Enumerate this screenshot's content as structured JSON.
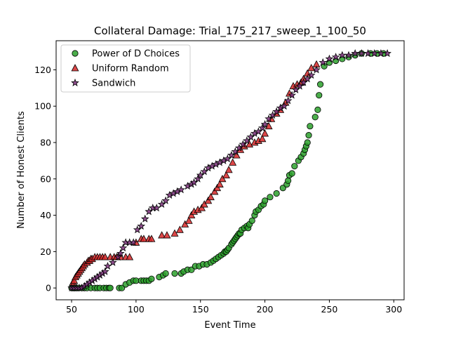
{
  "chart_data": {
    "type": "scatter",
    "title": "Collateral Damage: Trial_175_217_sweep_1_100_50",
    "xlabel": "Event Time",
    "ylabel": "Number of Honest Clients",
    "xlim": [
      38,
      308
    ],
    "ylim": [
      -6.5,
      136
    ],
    "xticks": [
      50,
      100,
      150,
      200,
      250,
      300
    ],
    "yticks": [
      0,
      20,
      40,
      60,
      80,
      100,
      120
    ],
    "grid": false,
    "legend_position": "upper-left",
    "series": [
      {
        "name": "Power of D Choices",
        "marker": "circle",
        "color": "#2ca02c",
        "x": [
          50,
          51,
          52,
          53,
          55,
          58,
          60,
          62,
          65,
          68,
          70,
          72,
          75,
          77,
          79,
          80,
          87,
          89,
          92,
          95,
          98,
          100,
          104,
          106,
          108,
          110,
          112,
          118,
          121,
          123,
          130,
          135,
          137,
          140,
          143,
          146,
          149,
          152,
          155,
          158,
          160,
          162,
          164,
          166,
          168,
          169,
          170,
          171,
          172,
          174,
          175,
          176,
          177,
          178,
          179,
          180,
          181,
          182,
          184,
          186,
          187,
          188,
          190,
          192,
          193,
          195,
          197,
          199,
          200,
          204,
          209,
          214,
          217,
          218,
          219,
          221,
          223,
          226,
          228,
          230,
          231,
          232,
          233,
          234,
          235,
          239,
          241,
          242,
          243,
          246,
          250,
          255,
          260,
          265,
          270,
          275,
          282,
          287,
          292
        ],
        "y": [
          0,
          0,
          0,
          0,
          0,
          0,
          0,
          0,
          0,
          0,
          0,
          0,
          0,
          0,
          0,
          0,
          0,
          0,
          2,
          3,
          4,
          4,
          4,
          4,
          4,
          4,
          5,
          6,
          7,
          8,
          8,
          8,
          9,
          10,
          10,
          12,
          12,
          13,
          13,
          14,
          15,
          16,
          17,
          18,
          19,
          20,
          20,
          21,
          22,
          24,
          25,
          26,
          27,
          28,
          29,
          30,
          30,
          32,
          33,
          34,
          33,
          35,
          37,
          40,
          42,
          43,
          45,
          46,
          48,
          50,
          52,
          55,
          57,
          59,
          62,
          63,
          67,
          70,
          72,
          74,
          76,
          78,
          80,
          84,
          89,
          94,
          98,
          106,
          112,
          122,
          124,
          125,
          126,
          127,
          128,
          129,
          129,
          129,
          129
        ]
      },
      {
        "name": "Uniform Random",
        "marker": "triangle",
        "color": "#d62728",
        "x": [
          51,
          52,
          53,
          54,
          55,
          56,
          57,
          58,
          59,
          60,
          62,
          63,
          64,
          65,
          66,
          68,
          70,
          72,
          74,
          76,
          80,
          83,
          85,
          88,
          92,
          95,
          100,
          104,
          106,
          110,
          112,
          120,
          124,
          130,
          134,
          138,
          141,
          143,
          145,
          148,
          151,
          153,
          156,
          158,
          161,
          163,
          165,
          167,
          170,
          172,
          175,
          178,
          181,
          184,
          188,
          192,
          195,
          198,
          200,
          203,
          205,
          209,
          212,
          216,
          219,
          222,
          225,
          228,
          230,
          233,
          236,
          240
        ],
        "y": [
          3,
          4,
          6,
          7,
          8,
          9,
          10,
          11,
          12,
          13,
          14,
          15,
          15,
          16,
          16,
          17,
          17,
          17,
          17,
          17,
          17,
          17,
          17,
          17,
          17,
          17,
          25,
          27,
          27,
          27,
          27,
          29,
          29,
          30,
          32,
          35,
          37,
          40,
          42,
          43,
          44,
          46,
          48,
          50,
          53,
          55,
          57,
          60,
          62,
          65,
          69,
          73,
          76,
          78,
          79,
          80,
          81,
          82,
          85,
          89,
          93,
          96,
          98,
          102,
          107,
          111,
          112,
          113,
          115,
          118,
          121,
          123
        ]
      },
      {
        "name": "Sandwich",
        "marker": "star",
        "color": "#7b2f7a",
        "x": [
          50,
          52,
          54,
          56,
          58,
          60,
          62,
          64,
          66,
          68,
          70,
          72,
          74,
          76,
          78,
          82,
          86,
          88,
          90,
          92,
          95,
          98,
          101,
          104,
          107,
          110,
          113,
          116,
          120,
          123,
          126,
          129,
          132,
          135,
          140,
          143,
          145,
          148,
          150,
          153,
          156,
          159,
          162,
          165,
          168,
          171,
          174,
          177,
          180,
          183,
          186,
          189,
          192,
          195,
          198,
          200,
          203,
          206,
          209,
          212,
          215,
          218,
          221,
          224,
          227,
          230,
          233,
          236,
          240,
          245,
          250,
          255,
          260,
          265,
          270,
          275,
          280,
          285,
          290,
          295
        ],
        "y": [
          0,
          0,
          0,
          0,
          0,
          1,
          2,
          3,
          4,
          5,
          6,
          7,
          8,
          9,
          12,
          14,
          17,
          19,
          22,
          25,
          25,
          25,
          32,
          34,
          38,
          42,
          44,
          44,
          46,
          48,
          51,
          52,
          53,
          54,
          56,
          57,
          58,
          60,
          62,
          64,
          66,
          67,
          68,
          69,
          70,
          71,
          73,
          75,
          77,
          79,
          81,
          83,
          85,
          86,
          88,
          90,
          93,
          95,
          97,
          99,
          100,
          103,
          106,
          109,
          111,
          113,
          115,
          117,
          120,
          124,
          126,
          127,
          128,
          128,
          129,
          129,
          129,
          129,
          129,
          129
        ]
      }
    ]
  }
}
